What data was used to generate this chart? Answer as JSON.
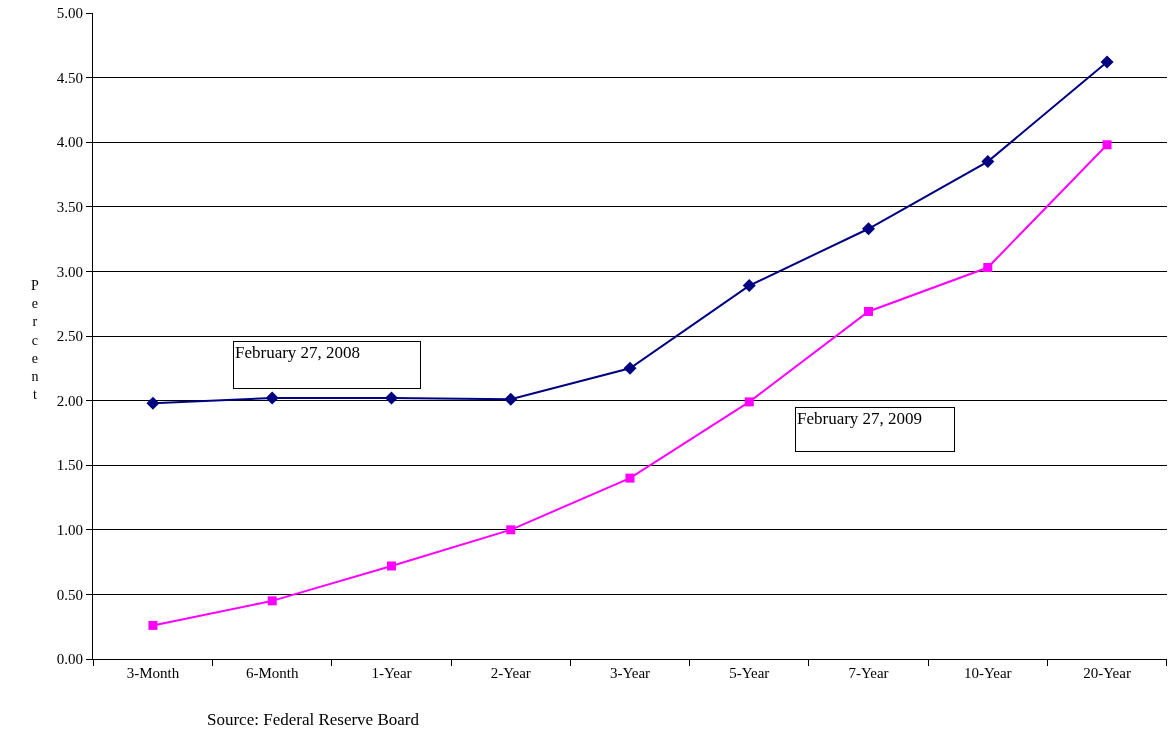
{
  "chart_data": {
    "type": "line",
    "ylabel": "Percent",
    "categories": [
      "3-Month",
      "6-Month",
      "1-Year",
      "2-Year",
      "3-Year",
      "5-Year",
      "7-Year",
      "10-Year",
      "20-Year"
    ],
    "series": [
      {
        "name": "February 27, 2008",
        "color": "#000080",
        "marker": "diamond",
        "values": [
          1.98,
          2.02,
          2.02,
          2.01,
          2.25,
          2.89,
          3.33,
          3.85,
          4.62
        ]
      },
      {
        "name": "February 27, 2009",
        "color": "#ff00ff",
        "marker": "square",
        "values": [
          0.26,
          0.45,
          0.72,
          1.0,
          1.4,
          1.99,
          2.69,
          3.03,
          3.98
        ]
      }
    ],
    "ylim": [
      0,
      5
    ],
    "yticks": [
      {
        "value": 0,
        "label": "0.00"
      },
      {
        "value": 0.5,
        "label": "0.50"
      },
      {
        "value": 1,
        "label": "1.00"
      },
      {
        "value": 1.5,
        "label": "1.50"
      },
      {
        "value": 2,
        "label": "2.00"
      },
      {
        "value": 2.5,
        "label": "2.50"
      },
      {
        "value": 3,
        "label": "3.00"
      },
      {
        "value": 3.5,
        "label": "3.50"
      },
      {
        "value": 4,
        "label": "4.00"
      },
      {
        "value": 4.5,
        "label": "4.50"
      },
      {
        "value": 5,
        "label": "5.00"
      }
    ],
    "grid": "y",
    "line_style": "solid",
    "annotations": [
      "Source: Federal Reserve Board"
    ]
  }
}
